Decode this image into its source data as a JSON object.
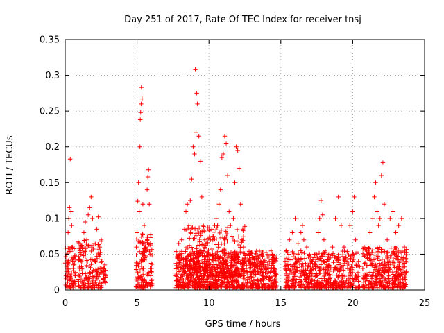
{
  "chart_data": {
    "type": "scatter",
    "title": "Day 251 of 2017, Rate Of TEC Index for receiver tnsj",
    "xlabel": "GPS time / hours",
    "ylabel": "ROTI / TECUs",
    "xlim": [
      0,
      25
    ],
    "ylim": [
      0,
      0.35
    ],
    "x_ticks": [
      0,
      5,
      10,
      15,
      20,
      25
    ],
    "x_tick_labels": [
      "0",
      "5",
      "10",
      "15",
      "20",
      "25"
    ],
    "y_ticks": [
      0,
      0.05,
      0.1,
      0.15,
      0.2,
      0.25,
      0.3,
      0.35
    ],
    "y_tick_labels": [
      "0",
      "0.05",
      "0.1",
      "0.15",
      "0.2",
      "0.25",
      "0.3",
      "0.35"
    ],
    "grid": true,
    "marker": "+",
    "color": "#ff0000",
    "series": [
      {
        "name": "ROTI",
        "points": [
          [
            0.05,
            0.02
          ],
          [
            0.1,
            0.05
          ],
          [
            0.15,
            0.03
          ],
          [
            0.2,
            0.08
          ],
          [
            0.25,
            0.1
          ],
          [
            0.3,
            0.115
          ],
          [
            0.35,
            0.183
          ],
          [
            0.4,
            0.11
          ],
          [
            0.45,
            0.09
          ],
          [
            0.5,
            0.06
          ],
          [
            0.55,
            0.03
          ],
          [
            0.6,
            0.045
          ],
          [
            0.65,
            0.012
          ],
          [
            0.7,
            0.02
          ],
          [
            0.9,
            0.015
          ],
          [
            1.0,
            0.03
          ],
          [
            1.1,
            0.05
          ],
          [
            1.2,
            0.06
          ],
          [
            1.3,
            0.08
          ],
          [
            1.4,
            0.095
          ],
          [
            1.5,
            0.07
          ],
          [
            1.6,
            0.105
          ],
          [
            1.7,
            0.115
          ],
          [
            1.8,
            0.13
          ],
          [
            1.9,
            0.1
          ],
          [
            2.0,
            0.065
          ],
          [
            2.1,
            0.04
          ],
          [
            2.2,
            0.085
          ],
          [
            2.3,
            0.102
          ],
          [
            2.4,
            0.06
          ],
          [
            2.5,
            0.03
          ],
          [
            2.65,
            0.015
          ],
          [
            2.7,
            0.03
          ],
          [
            2.75,
            0.035
          ],
          [
            2.8,
            0.02
          ],
          [
            4.95,
            0.06
          ],
          [
            5.0,
            0.08
          ],
          [
            5.05,
            0.124
          ],
          [
            5.1,
            0.15
          ],
          [
            5.15,
            0.11
          ],
          [
            5.2,
            0.2
          ],
          [
            5.22,
            0.238
          ],
          [
            5.25,
            0.248
          ],
          [
            5.28,
            0.26
          ],
          [
            5.3,
            0.283
          ],
          [
            5.35,
            0.267
          ],
          [
            5.4,
            0.12
          ],
          [
            5.5,
            0.09
          ],
          [
            5.6,
            0.06
          ],
          [
            5.7,
            0.14
          ],
          [
            5.75,
            0.158
          ],
          [
            5.8,
            0.168
          ],
          [
            5.85,
            0.12
          ],
          [
            5.9,
            0.05
          ],
          [
            5.95,
            0.02
          ],
          [
            6.0,
            0.03
          ],
          [
            7.7,
            0.02
          ],
          [
            7.8,
            0.045
          ],
          [
            7.9,
            0.065
          ],
          [
            8.0,
            0.05
          ],
          [
            8.1,
            0.07
          ],
          [
            8.2,
            0.03
          ],
          [
            8.3,
            0.085
          ],
          [
            8.4,
            0.11
          ],
          [
            8.5,
            0.12
          ],
          [
            8.6,
            0.09
          ],
          [
            8.7,
            0.125
          ],
          [
            8.8,
            0.155
          ],
          [
            8.9,
            0.2
          ],
          [
            9.0,
            0.19
          ],
          [
            9.05,
            0.308
          ],
          [
            9.1,
            0.22
          ],
          [
            9.15,
            0.275
          ],
          [
            9.2,
            0.26
          ],
          [
            9.3,
            0.215
          ],
          [
            9.4,
            0.18
          ],
          [
            9.5,
            0.13
          ],
          [
            9.6,
            0.09
          ],
          [
            9.7,
            0.07
          ],
          [
            9.8,
            0.065
          ],
          [
            9.9,
            0.04
          ],
          [
            10.0,
            0.05
          ],
          [
            10.1,
            0.07
          ],
          [
            10.2,
            0.085
          ],
          [
            10.3,
            0.075
          ],
          [
            10.4,
            0.09
          ],
          [
            10.5,
            0.1
          ],
          [
            10.6,
            0.09
          ],
          [
            10.7,
            0.12
          ],
          [
            10.8,
            0.14
          ],
          [
            10.9,
            0.185
          ],
          [
            11.0,
            0.19
          ],
          [
            11.1,
            0.215
          ],
          [
            11.2,
            0.205
          ],
          [
            11.3,
            0.16
          ],
          [
            11.4,
            0.11
          ],
          [
            11.5,
            0.09
          ],
          [
            11.6,
            0.075
          ],
          [
            11.7,
            0.1
          ],
          [
            11.8,
            0.15
          ],
          [
            11.9,
            0.2
          ],
          [
            12.0,
            0.195
          ],
          [
            12.1,
            0.17
          ],
          [
            12.2,
            0.12
          ],
          [
            12.3,
            0.07
          ],
          [
            12.4,
            0.06
          ],
          [
            12.5,
            0.04
          ],
          [
            12.6,
            0.03
          ],
          [
            12.7,
            0.05
          ],
          [
            12.8,
            0.04
          ],
          [
            12.9,
            0.035
          ],
          [
            13.0,
            0.045
          ],
          [
            13.2,
            0.035
          ],
          [
            13.4,
            0.03
          ],
          [
            13.6,
            0.04
          ],
          [
            13.8,
            0.035
          ],
          [
            14.0,
            0.03
          ],
          [
            14.2,
            0.04
          ],
          [
            14.4,
            0.05
          ],
          [
            14.5,
            0.03
          ],
          [
            14.6,
            0.02
          ],
          [
            15.3,
            0.04
          ],
          [
            15.4,
            0.055
          ],
          [
            15.5,
            0.03
          ],
          [
            15.6,
            0.07
          ],
          [
            15.8,
            0.08
          ],
          [
            16.0,
            0.1
          ],
          [
            16.2,
            0.065
          ],
          [
            16.4,
            0.08
          ],
          [
            16.5,
            0.09
          ],
          [
            16.6,
            0.07
          ],
          [
            16.8,
            0.06
          ],
          [
            17.0,
            0.05
          ],
          [
            17.2,
            0.04
          ],
          [
            17.4,
            0.03
          ],
          [
            17.5,
            0.05
          ],
          [
            17.6,
            0.08
          ],
          [
            17.7,
            0.1
          ],
          [
            17.8,
            0.125
          ],
          [
            17.9,
            0.105
          ],
          [
            18.0,
            0.07
          ],
          [
            18.2,
            0.04
          ],
          [
            18.4,
            0.05
          ],
          [
            18.6,
            0.06
          ],
          [
            18.8,
            0.1
          ],
          [
            19.0,
            0.13
          ],
          [
            19.2,
            0.09
          ],
          [
            19.4,
            0.06
          ],
          [
            19.6,
            0.04
          ],
          [
            19.8,
            0.09
          ],
          [
            20.0,
            0.11
          ],
          [
            20.1,
            0.13
          ],
          [
            20.2,
            0.07
          ],
          [
            20.4,
            0.04
          ],
          [
            20.7,
            0.03
          ],
          [
            20.8,
            0.06
          ],
          [
            21.0,
            0.05
          ],
          [
            21.2,
            0.08
          ],
          [
            21.4,
            0.1
          ],
          [
            21.5,
            0.13
          ],
          [
            21.6,
            0.15
          ],
          [
            21.7,
            0.11
          ],
          [
            21.8,
            0.09
          ],
          [
            21.9,
            0.1
          ],
          [
            22.0,
            0.16
          ],
          [
            22.1,
            0.178
          ],
          [
            22.2,
            0.12
          ],
          [
            22.4,
            0.07
          ],
          [
            22.6,
            0.1
          ],
          [
            22.8,
            0.11
          ],
          [
            23.0,
            0.08
          ],
          [
            23.2,
            0.09
          ],
          [
            23.4,
            0.1
          ],
          [
            23.6,
            0.06
          ],
          [
            23.7,
            0.04
          ]
        ]
      }
    ],
    "clusters": [
      {
        "x": [
          0.0,
          0.75
        ],
        "ymin": 0.003,
        "ymax": 0.06,
        "n": 70
      },
      {
        "x": [
          0.9,
          2.55
        ],
        "ymin": 0.003,
        "ymax": 0.07,
        "n": 150
      },
      {
        "x": [
          2.62,
          2.85
        ],
        "ymin": 0.01,
        "ymax": 0.035,
        "n": 18
      },
      {
        "x": [
          4.92,
          6.05
        ],
        "ymin": 0.003,
        "ymax": 0.08,
        "n": 120
      },
      {
        "x": [
          7.7,
          14.7
        ],
        "ymin": 0.003,
        "ymax": 0.055,
        "n": 900
      },
      {
        "x": [
          8.2,
          12.5
        ],
        "ymin": 0.02,
        "ymax": 0.09,
        "n": 260
      },
      {
        "x": [
          15.3,
          20.5
        ],
        "ymin": 0.003,
        "ymax": 0.055,
        "n": 520
      },
      {
        "x": [
          20.7,
          23.75
        ],
        "ymin": 0.003,
        "ymax": 0.06,
        "n": 330
      }
    ]
  }
}
